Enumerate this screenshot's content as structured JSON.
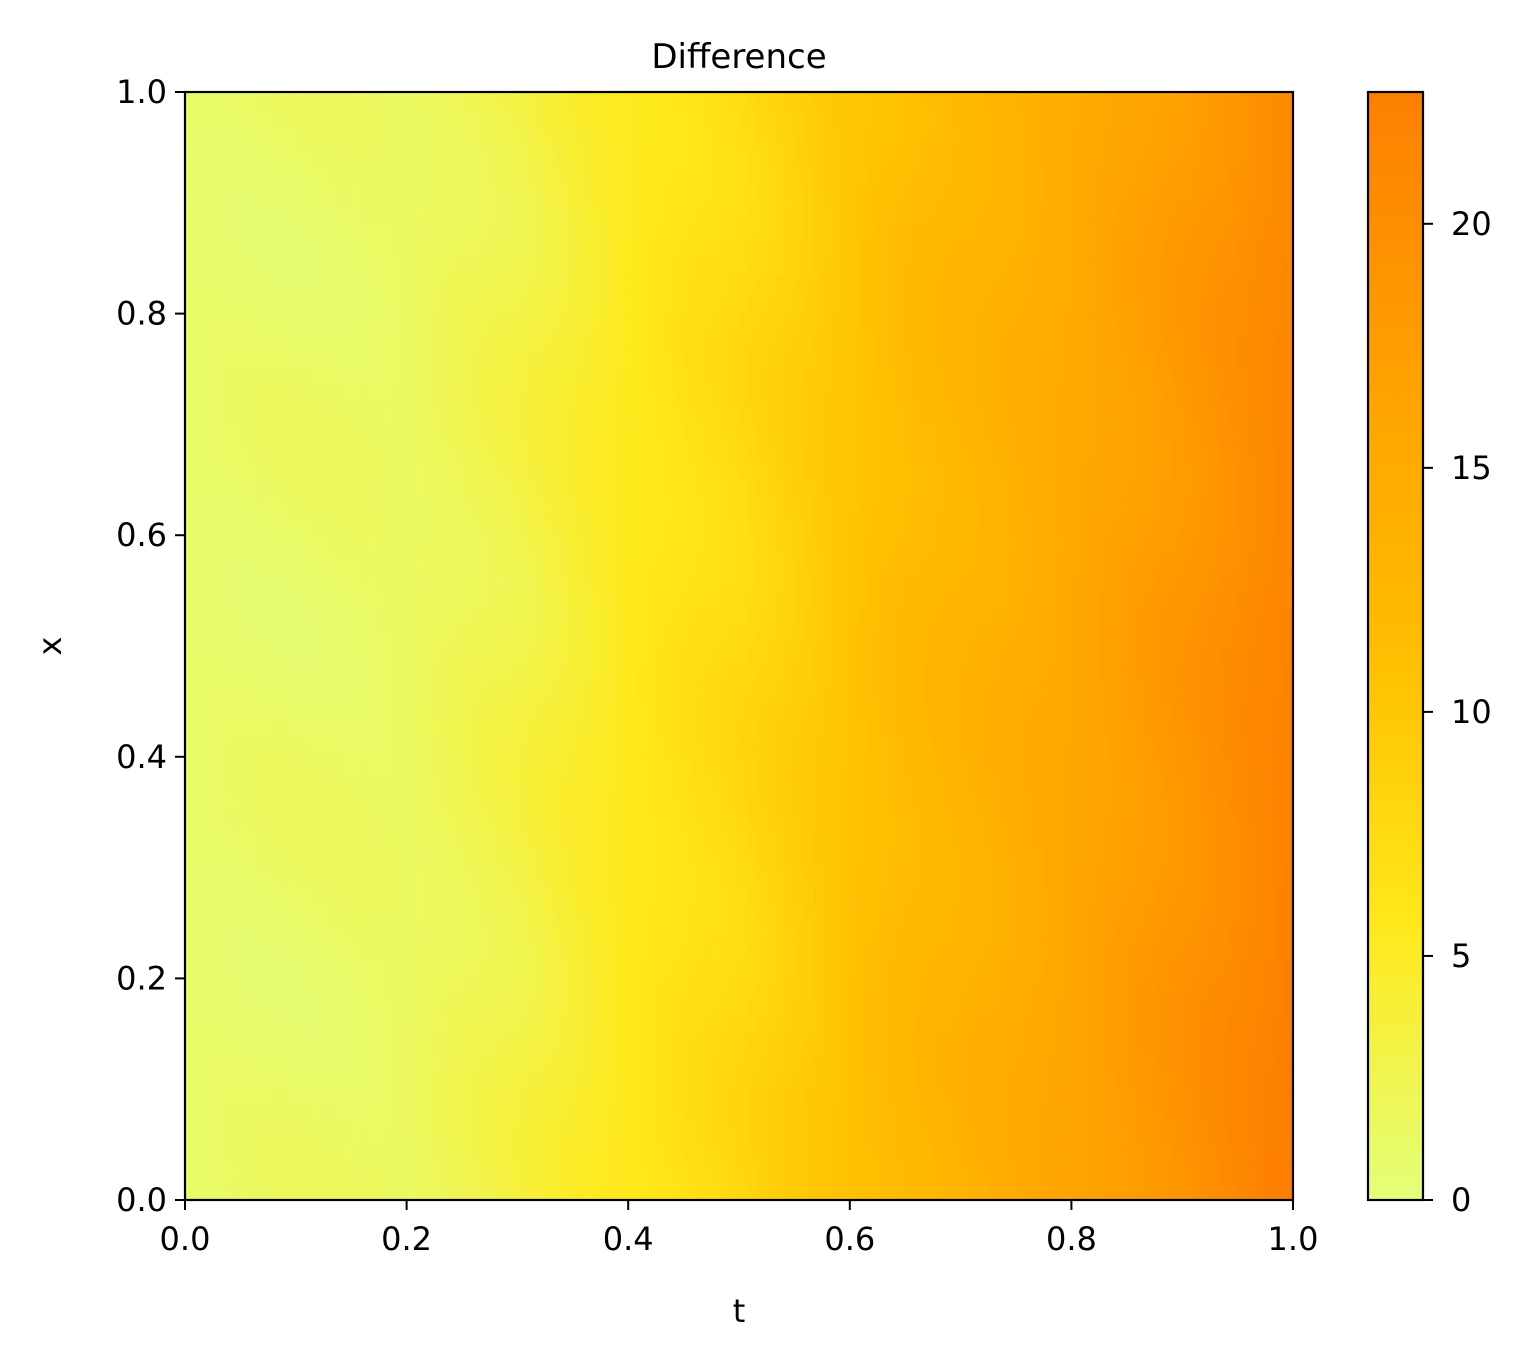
{
  "chart_data": {
    "type": "heatmap",
    "title": "Difference",
    "xlabel": "t",
    "ylabel": "x",
    "xlim": [
      0.0,
      1.0
    ],
    "ylim": [
      0.0,
      1.0
    ],
    "xticks": [
      "0.0",
      "0.2",
      "0.4",
      "0.6",
      "0.8",
      "1.0"
    ],
    "yticks": [
      "0.0",
      "0.2",
      "0.4",
      "0.6",
      "0.8",
      "1.0"
    ],
    "colorbar": {
      "range": [
        0,
        22.7
      ],
      "ticks": [
        "0",
        "5",
        "10",
        "15",
        "20"
      ],
      "colormap": "Wistia",
      "colors": [
        "#e4ff7a",
        "#ffe81a",
        "#ffbd00",
        "#ffa000",
        "#fc7f00"
      ]
    },
    "grid": false,
    "legend": "none",
    "value_profile_along_t": {
      "t": [
        0.0,
        0.1,
        0.2,
        0.3,
        0.4,
        0.5,
        0.6,
        0.7,
        0.8,
        0.9,
        1.0
      ],
      "value": [
        1.0,
        1.2,
        1.5,
        3.0,
        5.5,
        7.5,
        10.5,
        13.0,
        15.5,
        18.5,
        22.0
      ]
    }
  }
}
